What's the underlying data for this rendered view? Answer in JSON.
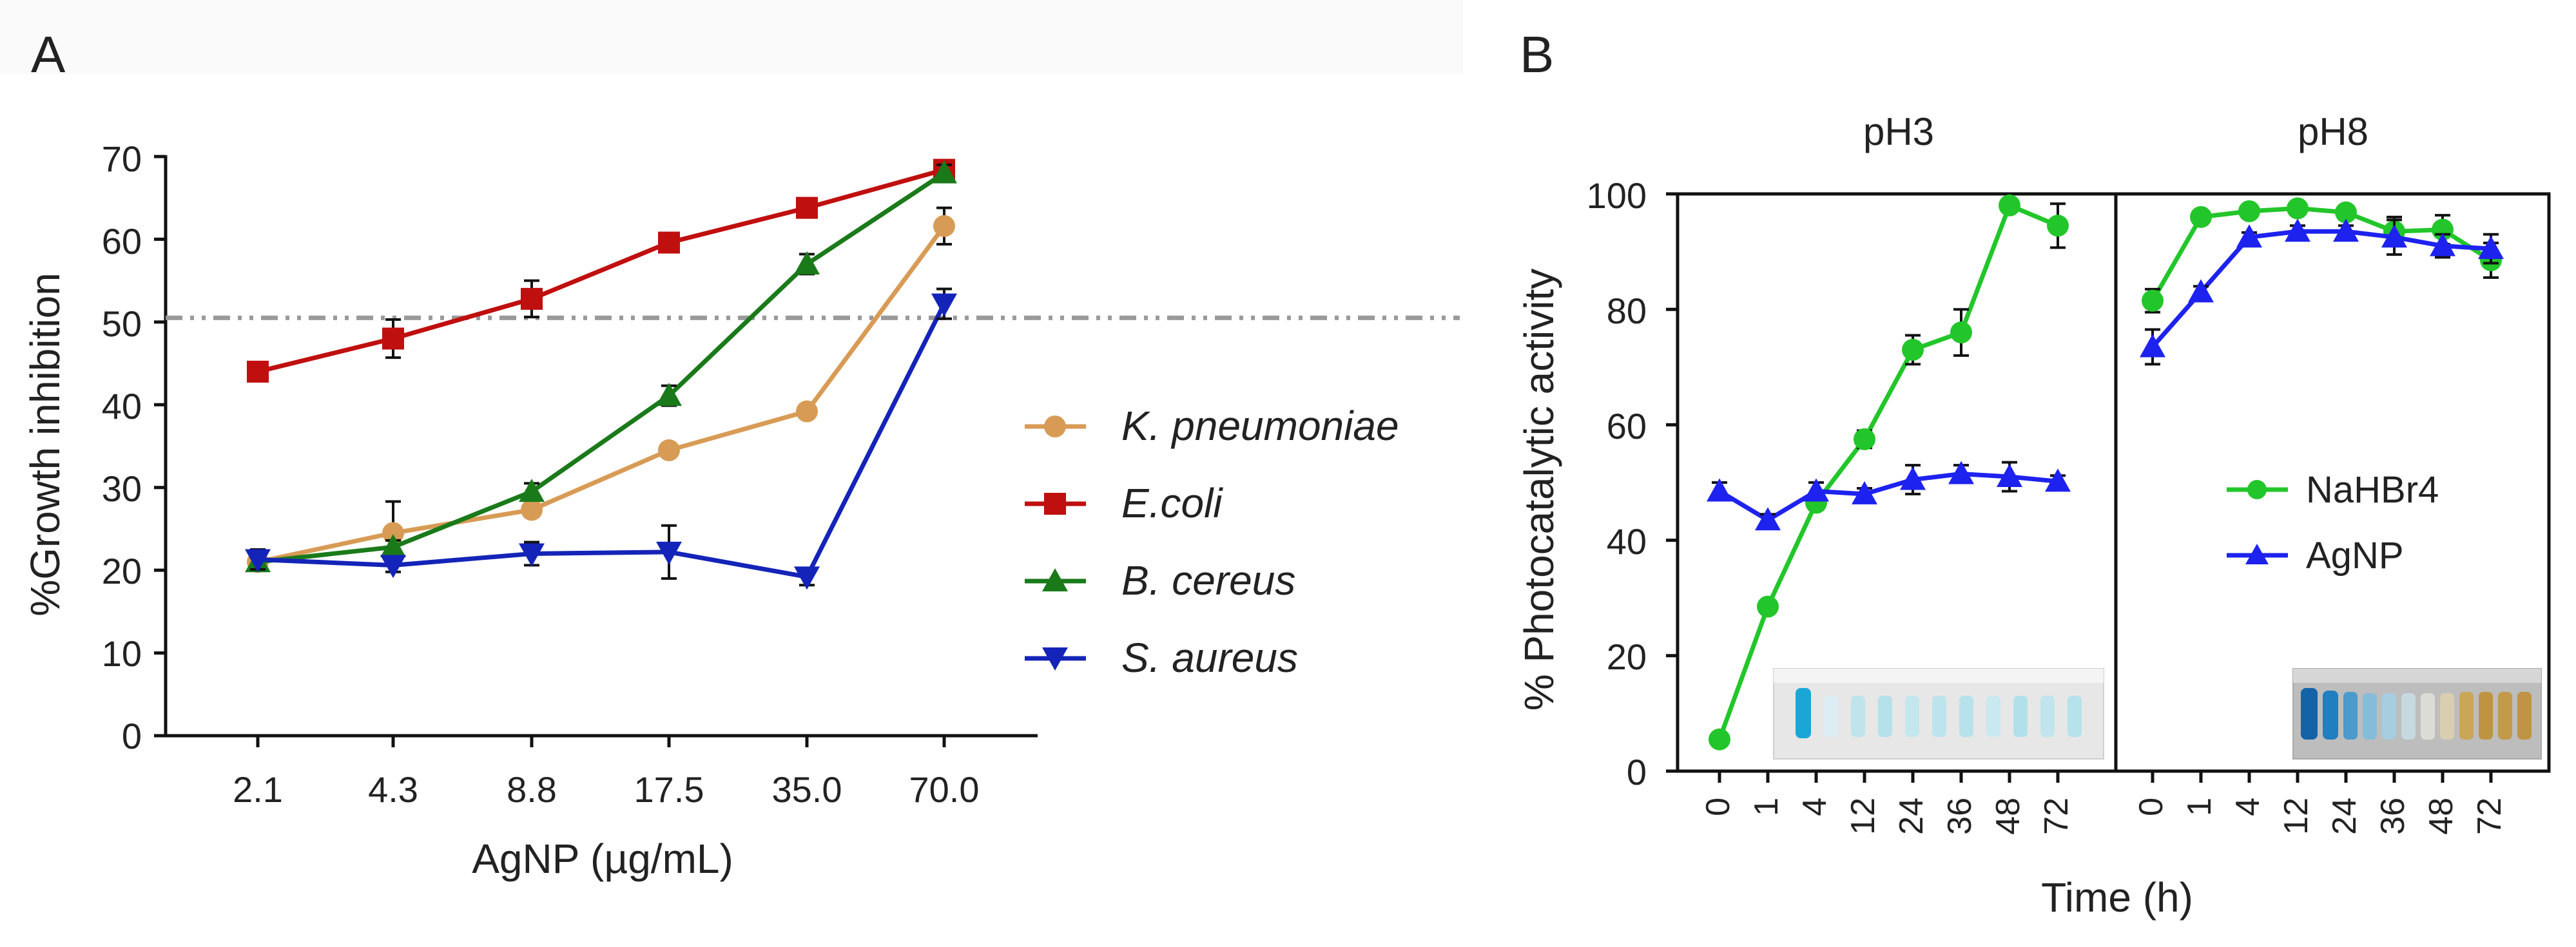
{
  "panel_a": {
    "label": "A",
    "ylabel": "%Growth inhibition",
    "xlabel": "AgNP (µg/mL)",
    "yticks": [
      "0",
      "10",
      "20",
      "30",
      "40",
      "50",
      "60",
      "70"
    ],
    "xticks": [
      "2.1",
      "4.3",
      "8.8",
      "17.5",
      "35.0",
      "70.0"
    ],
    "legend": [
      "K. pneumoniae",
      "E.coli",
      "B. cereus",
      "S. aureus"
    ]
  },
  "panel_b": {
    "label": "B",
    "ylabel": "% Photocatalytic activity",
    "xlabel": "Time (h)",
    "facet_titles": [
      "pH3",
      "pH8"
    ],
    "yticks": [
      "0",
      "20",
      "40",
      "60",
      "80",
      "100"
    ],
    "xticks": [
      "0",
      "1",
      "4",
      "12",
      "24",
      "36",
      "48",
      "72"
    ],
    "legend": [
      "NaHBr4",
      "AgNP"
    ]
  },
  "chart_data": [
    {
      "type": "line",
      "panel": "A",
      "xlabel": "AgNP (µg/mL)",
      "ylabel": "%Growth inhibition",
      "categories": [
        "2.1",
        "4.3",
        "8.8",
        "17.5",
        "35.0",
        "70.0"
      ],
      "ylim": [
        0,
        70
      ],
      "reference_line": 50.5,
      "legend_position": "right",
      "series": [
        {
          "name": "K. pneumoniae",
          "color": "#d89b55",
          "marker": "circle",
          "values": [
            21.0,
            24.5,
            27.3,
            34.5,
            39.2,
            61.6
          ],
          "errors": [
            0.6,
            3.8,
            0.8,
            0.8,
            0.8,
            2.2
          ]
        },
        {
          "name": "E.coli",
          "color": "#c00f0f",
          "marker": "square",
          "values": [
            44.0,
            48.0,
            52.8,
            59.6,
            63.8,
            68.4
          ],
          "errors": [
            0.5,
            2.3,
            2.2,
            0.6,
            0.6,
            1.0
          ]
        },
        {
          "name": "B. cereus",
          "color": "#1a7a1a",
          "marker": "triangle-up",
          "values": [
            21.0,
            22.8,
            29.5,
            41.1,
            57.0,
            68.0
          ],
          "errors": [
            0.5,
            0.8,
            1.0,
            1.2,
            1.2,
            1.0
          ]
        },
        {
          "name": "S. aureus",
          "color": "#1424b8",
          "marker": "triangle-down",
          "values": [
            21.3,
            20.6,
            22.0,
            22.2,
            19.2,
            52.2
          ],
          "errors": [
            1.2,
            0.8,
            1.4,
            3.2,
            1.0,
            1.8
          ]
        }
      ]
    },
    {
      "type": "line",
      "panel": "B",
      "facet": "pH3",
      "xlabel": "Time (h)",
      "ylabel": "% Photocatalytic activity",
      "categories": [
        "0",
        "1",
        "4",
        "12",
        "24",
        "36",
        "48",
        "72"
      ],
      "ylim": [
        0,
        100
      ],
      "series": [
        {
          "name": "NaHBr4",
          "color": "#22c62a",
          "marker": "circle",
          "values": [
            5.5,
            28.5,
            46.5,
            57.5,
            73.0,
            76.0,
            98.0,
            94.5
          ],
          "errors": [
            0.5,
            1.0,
            1.2,
            1.5,
            2.5,
            4.0,
            0.8,
            3.8
          ]
        },
        {
          "name": "AgNP",
          "color": "#1e22ee",
          "marker": "triangle-up",
          "values": [
            48.5,
            43.5,
            48.5,
            48.0,
            50.5,
            51.5,
            51.0,
            50.2
          ],
          "errors": [
            1.5,
            1.0,
            1.5,
            1.0,
            2.5,
            1.5,
            2.5,
            1.0
          ]
        }
      ]
    },
    {
      "type": "line",
      "panel": "B",
      "facet": "pH8",
      "xlabel": "Time (h)",
      "ylabel": "% Photocatalytic activity",
      "categories": [
        "0",
        "1",
        "4",
        "12",
        "24",
        "36",
        "48",
        "72"
      ],
      "ylim": [
        0,
        100
      ],
      "legend_position": "middle-right",
      "series": [
        {
          "name": "NaHBr4",
          "color": "#22c62a",
          "marker": "circle",
          "values": [
            81.5,
            96.0,
            97.0,
            97.5,
            96.8,
            93.5,
            93.8,
            88.5
          ],
          "errors": [
            2.0,
            1.0,
            0.5,
            0.5,
            0.8,
            2.5,
            2.5,
            3.0
          ]
        },
        {
          "name": "AgNP",
          "color": "#1e22ee",
          "marker": "triangle-up",
          "values": [
            73.5,
            83.0,
            92.5,
            93.5,
            93.5,
            92.5,
            91.0,
            90.5
          ],
          "errors": [
            3.0,
            1.0,
            0.8,
            1.0,
            1.0,
            3.0,
            2.0,
            2.5
          ]
        }
      ]
    }
  ]
}
